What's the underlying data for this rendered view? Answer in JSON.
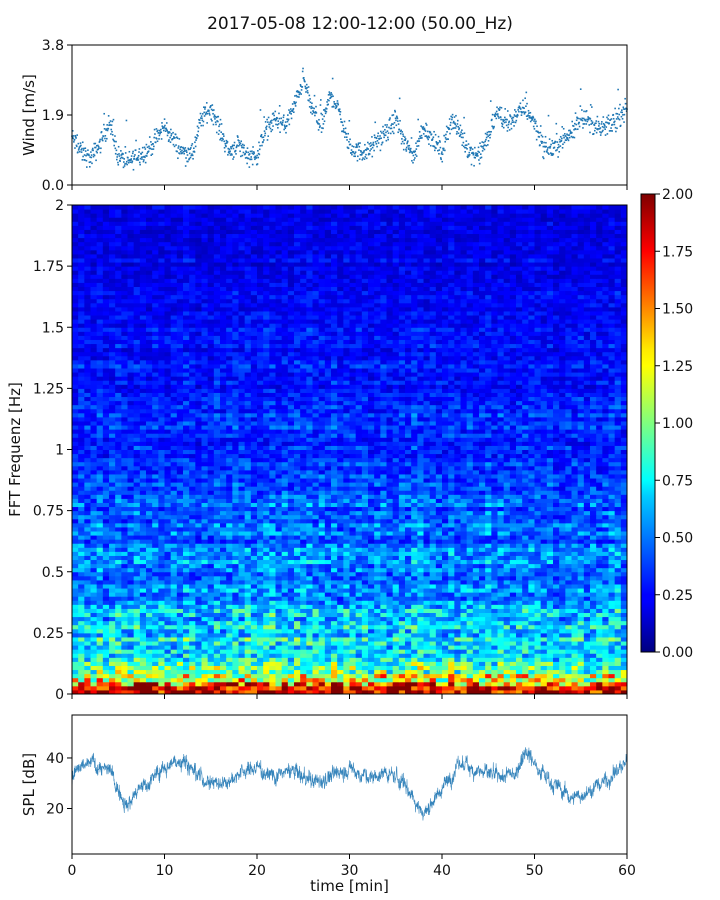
{
  "title": "2017-05-08 12:00-12:00 (50.00_Hz)",
  "chart_data": [
    {
      "id": "wind",
      "type": "scatter",
      "ylabel": "Wind [m/s]",
      "xlim": [
        0,
        60
      ],
      "ylim": [
        0,
        3.8
      ],
      "yticks": [
        0.0,
        1.9,
        3.8
      ],
      "ytick_labels": [
        "0.0",
        "1.9",
        "3.8"
      ],
      "color": "#1f77b4",
      "envelope": {
        "x": [
          0,
          1,
          2,
          3,
          4,
          5,
          6,
          7,
          8,
          9,
          10,
          11,
          12,
          13,
          14,
          15,
          16,
          17,
          18,
          19,
          20,
          21,
          22,
          23,
          24,
          25,
          26,
          27,
          28,
          29,
          30,
          31,
          32,
          33,
          34,
          35,
          36,
          37,
          38,
          39,
          40,
          41,
          42,
          43,
          44,
          45,
          46,
          47,
          48,
          49,
          50,
          51,
          52,
          53,
          54,
          55,
          56,
          57,
          58,
          59,
          60
        ],
        "y": [
          1.3,
          0.9,
          0.7,
          1.1,
          1.7,
          0.8,
          0.6,
          0.8,
          0.9,
          1.2,
          1.6,
          1.2,
          0.9,
          0.8,
          1.8,
          2.1,
          1.5,
          0.9,
          1.1,
          0.8,
          0.8,
          1.5,
          1.8,
          1.6,
          2.1,
          2.9,
          2.0,
          1.6,
          2.5,
          1.9,
          1.0,
          0.9,
          0.9,
          1.2,
          1.4,
          1.8,
          1.1,
          0.8,
          1.6,
          1.2,
          0.9,
          1.8,
          1.4,
          0.9,
          0.8,
          1.3,
          2.0,
          1.6,
          1.9,
          2.1,
          1.7,
          1.0,
          1.0,
          1.2,
          1.4,
          1.9,
          1.7,
          1.5,
          1.6,
          1.8,
          2.1
        ]
      }
    },
    {
      "id": "spectrogram",
      "type": "heatmap",
      "ylabel": "FFT Frequenz [Hz]",
      "xlim": [
        0,
        60
      ],
      "ylim": [
        0,
        2
      ],
      "yticks": [
        0,
        0.25,
        0.5,
        0.75,
        1,
        1.25,
        1.5,
        1.75,
        2
      ],
      "ytick_labels": [
        "0",
        "0.25",
        "0.5",
        "0.75",
        "1",
        "1.25",
        "1.5",
        "1.75",
        "2"
      ],
      "colorbar": {
        "range": [
          0,
          2
        ],
        "ticks": [
          0,
          0.25,
          0.5,
          0.75,
          1,
          1.25,
          1.5,
          1.75,
          2
        ],
        "tick_labels": [
          "0.00",
          "0.25",
          "0.50",
          "0.75",
          "1.00",
          "1.25",
          "1.50",
          "1.75",
          "2.00"
        ],
        "colormap": "jet"
      },
      "intensity_profile": {
        "freq": [
          0,
          0.05,
          0.1,
          0.2,
          0.3,
          0.4,
          0.5,
          0.7,
          1.0,
          1.5,
          2.0
        ],
        "mean": [
          1.9,
          1.2,
          0.9,
          0.65,
          0.7,
          0.55,
          0.5,
          0.45,
          0.35,
          0.25,
          0.2
        ]
      }
    },
    {
      "id": "spl",
      "type": "line",
      "ylabel": "SPL [dB]",
      "xlabel": "time [min]",
      "xlim": [
        0,
        60
      ],
      "ylim": [
        2,
        57
      ],
      "yticks": [
        20,
        40
      ],
      "ytick_labels": [
        "20",
        "40"
      ],
      "xticks": [
        0,
        10,
        20,
        30,
        40,
        50,
        60
      ],
      "xtick_labels": [
        "0",
        "10",
        "20",
        "30",
        "40",
        "50",
        "60"
      ],
      "color": "#1f77b4",
      "envelope": {
        "x": [
          0,
          2,
          4,
          5,
          6,
          8,
          10,
          11,
          12,
          14,
          16,
          18,
          20,
          22,
          24,
          26,
          28,
          30,
          32,
          34,
          36,
          37,
          38,
          39,
          40,
          42,
          44,
          46,
          48,
          49,
          50,
          52,
          54,
          56,
          58,
          60
        ],
        "y": [
          33,
          38,
          35,
          28,
          22,
          30,
          36,
          38,
          40,
          32,
          30,
          34,
          36,
          33,
          35,
          30,
          33,
          36,
          32,
          34,
          30,
          24,
          18,
          23,
          28,
          38,
          35,
          32,
          34,
          44,
          38,
          30,
          24,
          27,
          32,
          38
        ]
      }
    }
  ]
}
